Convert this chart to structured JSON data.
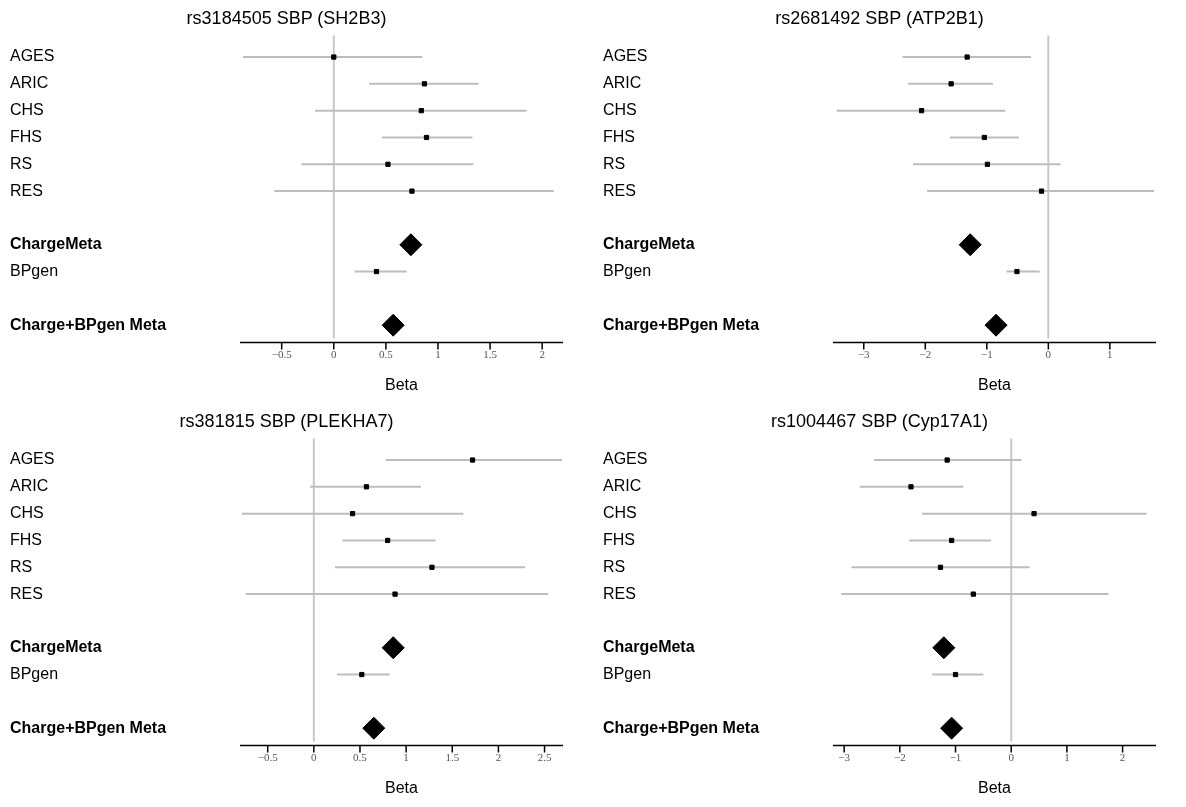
{
  "chart_data": [
    {
      "type": "scatter",
      "orientation": "horizontal",
      "title": "rs3184505 SBP (SH2B3)",
      "xlabel": "Beta",
      "categories": [
        "AGES",
        "ARIC",
        "CHS",
        "FHS",
        "RS",
        "RES",
        null,
        "ChargeMeta",
        "BPgen",
        null,
        "Charge+BPgen Meta"
      ],
      "xlim": [
        -0.9,
        2.2
      ],
      "xticks": [
        -0.5,
        0,
        0.5,
        1,
        1.5,
        2
      ],
      "grid": false,
      "legend": false,
      "ref_lines": [
        {
          "axis": "x",
          "value": 0,
          "color": "#c8c8c8"
        }
      ],
      "series": [
        {
          "color": "#000000",
          "marker": "square",
          "values": [
            0.0,
            0.87,
            0.84,
            0.89,
            0.52,
            0.75,
            null,
            null,
            null,
            null,
            null
          ],
          "errors": [
            [
              -0.87,
              0.85
            ],
            [
              0.34,
              1.39
            ],
            [
              -0.18,
              1.85
            ],
            [
              0.46,
              1.33
            ],
            [
              -0.31,
              1.34
            ],
            [
              -0.57,
              2.11
            ],
            null,
            null,
            null,
            null,
            null
          ]
        },
        {
          "color": "#000000",
          "marker": "diamond",
          "values": [
            null,
            null,
            null,
            null,
            null,
            null,
            null,
            0.74,
            null,
            null,
            null
          ]
        },
        {
          "color": "#000000",
          "marker": "square",
          "values": [
            null,
            null,
            null,
            null,
            null,
            null,
            null,
            null,
            0.41,
            null,
            null
          ],
          "errors": [
            null,
            null,
            null,
            null,
            null,
            null,
            null,
            null,
            [
              0.2,
              0.7
            ],
            null,
            null
          ]
        },
        {
          "color": "#000000",
          "marker": "diamond",
          "values": [
            null,
            null,
            null,
            null,
            null,
            null,
            null,
            null,
            null,
            null,
            0.57
          ]
        }
      ]
    },
    {
      "type": "scatter",
      "orientation": "horizontal",
      "title": "rs2681492 SBP (ATP2B1)",
      "xlabel": "Beta",
      "categories": [
        "AGES",
        "ARIC",
        "CHS",
        "FHS",
        "RS",
        "RES",
        null,
        "ChargeMeta",
        "BPgen",
        null,
        "Charge+BPgen Meta"
      ],
      "xlim": [
        -3.5,
        1.75
      ],
      "xticks": [
        -3,
        -2,
        -1,
        0,
        1
      ],
      "grid": false,
      "legend": false,
      "ref_lines": [
        {
          "axis": "x",
          "value": 0,
          "color": "#c8c8c8"
        }
      ],
      "series": [
        {
          "color": "#000000",
          "marker": "square",
          "values": [
            -1.32,
            -1.58,
            -2.06,
            -1.04,
            -0.99,
            -0.11,
            null,
            null,
            null,
            null,
            null
          ],
          "errors": [
            [
              -2.37,
              -0.28
            ],
            [
              -2.28,
              -0.9
            ],
            [
              -3.44,
              -0.7
            ],
            [
              -1.6,
              -0.48
            ],
            [
              -2.2,
              0.2
            ],
            [
              -1.97,
              1.72
            ],
            null,
            null,
            null,
            null,
            null
          ]
        },
        {
          "color": "#000000",
          "marker": "diamond",
          "values": [
            null,
            null,
            null,
            null,
            null,
            null,
            null,
            -1.27,
            null,
            null,
            null
          ]
        },
        {
          "color": "#000000",
          "marker": "square",
          "values": [
            null,
            null,
            null,
            null,
            null,
            null,
            null,
            null,
            -0.51,
            null,
            null
          ],
          "errors": [
            null,
            null,
            null,
            null,
            null,
            null,
            null,
            null,
            [
              -0.68,
              -0.14
            ],
            null,
            null
          ]
        },
        {
          "color": "#000000",
          "marker": "diamond",
          "values": [
            null,
            null,
            null,
            null,
            null,
            null,
            null,
            null,
            null,
            null,
            -0.85
          ]
        }
      ]
    },
    {
      "type": "scatter",
      "orientation": "horizontal",
      "title": "rs381815 SBP (PLEKHA7)",
      "xlabel": "Beta",
      "categories": [
        "AGES",
        "ARIC",
        "CHS",
        "FHS",
        "RS",
        "RES",
        null,
        "ChargeMeta",
        "BPgen",
        null,
        "Charge+BPgen Meta"
      ],
      "xlim": [
        -0.8,
        2.7
      ],
      "xticks": [
        -0.5,
        0,
        0.5,
        1,
        1.5,
        2,
        2.5
      ],
      "grid": false,
      "legend": false,
      "ref_lines": [
        {
          "axis": "x",
          "value": 0,
          "color": "#c8c8c8"
        }
      ],
      "series": [
        {
          "color": "#000000",
          "marker": "square",
          "values": [
            1.72,
            0.57,
            0.42,
            0.8,
            1.28,
            0.88,
            null,
            null,
            null,
            null,
            null
          ],
          "errors": [
            [
              0.78,
              2.69
            ],
            [
              -0.04,
              1.16
            ],
            [
              -0.78,
              1.62
            ],
            [
              0.31,
              1.32
            ],
            [
              0.23,
              2.29
            ],
            [
              -0.74,
              2.54
            ],
            null,
            null,
            null,
            null,
            null
          ]
        },
        {
          "color": "#000000",
          "marker": "diamond",
          "values": [
            null,
            null,
            null,
            null,
            null,
            null,
            null,
            0.86,
            null,
            null,
            null
          ]
        },
        {
          "color": "#000000",
          "marker": "square",
          "values": [
            null,
            null,
            null,
            null,
            null,
            null,
            null,
            null,
            0.52,
            null,
            null
          ],
          "errors": [
            null,
            null,
            null,
            null,
            null,
            null,
            null,
            null,
            [
              0.25,
              0.82
            ],
            null,
            null
          ]
        },
        {
          "color": "#000000",
          "marker": "diamond",
          "values": [
            null,
            null,
            null,
            null,
            null,
            null,
            null,
            null,
            null,
            null,
            0.65
          ]
        }
      ]
    },
    {
      "type": "scatter",
      "orientation": "horizontal",
      "title": "rs1004467 SBP (Cyp17A1)",
      "xlabel": "Beta",
      "categories": [
        "AGES",
        "ARIC",
        "CHS",
        "FHS",
        "RS",
        "RES",
        null,
        "ChargeMeta",
        "BPgen",
        null,
        "Charge+BPgen Meta"
      ],
      "xlim": [
        -3.2,
        2.6
      ],
      "xticks": [
        -3,
        -2,
        -1,
        0,
        1,
        2
      ],
      "grid": false,
      "legend": false,
      "ref_lines": [
        {
          "axis": "x",
          "value": 0,
          "color": "#c8c8c8"
        }
      ],
      "series": [
        {
          "color": "#000000",
          "marker": "square",
          "values": [
            -1.15,
            -1.8,
            0.41,
            -1.07,
            -1.27,
            -0.68,
            null,
            null,
            null,
            null,
            null
          ],
          "errors": [
            [
              -2.46,
              0.18
            ],
            [
              -2.72,
              -0.86
            ],
            [
              -1.6,
              2.43
            ],
            [
              -1.83,
              -0.36
            ],
            [
              -2.87,
              0.33
            ],
            [
              -3.05,
              1.75
            ],
            null,
            null,
            null,
            null,
            null
          ]
        },
        {
          "color": "#000000",
          "marker": "diamond",
          "values": [
            null,
            null,
            null,
            null,
            null,
            null,
            null,
            -1.21,
            null,
            null,
            null
          ]
        },
        {
          "color": "#000000",
          "marker": "square",
          "values": [
            null,
            null,
            null,
            null,
            null,
            null,
            null,
            null,
            -1.0,
            null,
            null
          ],
          "errors": [
            null,
            null,
            null,
            null,
            null,
            null,
            null,
            null,
            [
              -1.42,
              -0.5
            ],
            null,
            null
          ]
        },
        {
          "color": "#000000",
          "marker": "diamond",
          "values": [
            null,
            null,
            null,
            null,
            null,
            null,
            null,
            null,
            null,
            null,
            -1.07
          ]
        }
      ]
    }
  ]
}
